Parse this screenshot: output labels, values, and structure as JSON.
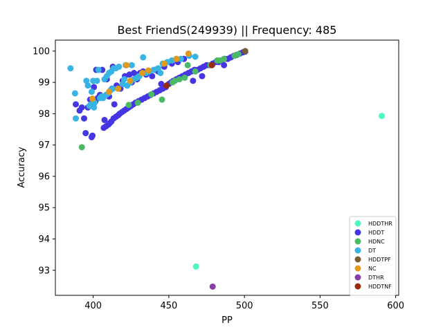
{
  "chart_data": {
    "type": "scatter",
    "title": "Best FriendS(249939) || Frequency: 485",
    "xlabel": "PP",
    "ylabel": "Accuracy",
    "xlim": [
      375,
      602
    ],
    "ylim": [
      92.2,
      100.35
    ],
    "xticks": [
      400,
      450,
      500,
      550,
      600
    ],
    "yticks": [
      93,
      94,
      95,
      96,
      97,
      98,
      99,
      100
    ],
    "grid": false,
    "legend_position": "lower-right",
    "series": [
      {
        "name": "HDDTHR",
        "color": "#4ef7c0",
        "points": [
          [
            590.8,
            97.93
          ],
          [
            468.0,
            93.12
          ]
        ]
      },
      {
        "name": "HDDT",
        "color": "#4535e3",
        "points": [
          [
            388.5,
            98.3
          ],
          [
            391.0,
            98.1
          ],
          [
            392.5,
            98.2
          ],
          [
            394.0,
            97.85
          ],
          [
            395.0,
            97.38
          ],
          [
            396.5,
            98.2
          ],
          [
            398.0,
            98.45
          ],
          [
            399.0,
            97.25
          ],
          [
            399.5,
            97.3
          ],
          [
            400.5,
            98.85
          ],
          [
            401.5,
            98.4
          ],
          [
            402.0,
            99.4
          ],
          [
            403.0,
            98.5
          ],
          [
            404.5,
            98.6
          ],
          [
            406.0,
            99.4
          ],
          [
            407.0,
            97.55
          ],
          [
            407.5,
            97.8
          ],
          [
            408.5,
            97.6
          ],
          [
            409.0,
            99.1
          ],
          [
            410.0,
            97.65
          ],
          [
            410.5,
            98.55
          ],
          [
            411.0,
            97.7
          ],
          [
            412.0,
            97.75
          ],
          [
            412.5,
            98.8
          ],
          [
            413.0,
            99.5
          ],
          [
            413.5,
            97.85
          ],
          [
            414.0,
            98.3
          ],
          [
            415.0,
            97.9
          ],
          [
            415.5,
            98.9
          ],
          [
            416.5,
            97.95
          ],
          [
            417.5,
            98.0
          ],
          [
            418.0,
            98.8
          ],
          [
            419.0,
            98.05
          ],
          [
            419.5,
            99.05
          ],
          [
            420.5,
            98.1
          ],
          [
            421.0,
            99.2
          ],
          [
            422.0,
            98.15
          ],
          [
            422.5,
            98.9
          ],
          [
            423.5,
            98.2
          ],
          [
            424.0,
            99.25
          ],
          [
            425.0,
            98.25
          ],
          [
            425.5,
            99.0
          ],
          [
            426.5,
            98.3
          ],
          [
            427.0,
            99.3
          ],
          [
            428.0,
            98.35
          ],
          [
            429.0,
            99.1
          ],
          [
            430.0,
            98.4
          ],
          [
            431.0,
            99.3
          ],
          [
            432.0,
            98.45
          ],
          [
            433.0,
            99.35
          ],
          [
            434.0,
            98.5
          ],
          [
            435.0,
            99.25
          ],
          [
            436.0,
            98.55
          ],
          [
            437.0,
            99.35
          ],
          [
            438.0,
            98.6
          ],
          [
            439.0,
            99.2
          ],
          [
            440.0,
            98.65
          ],
          [
            441.0,
            99.4
          ],
          [
            442.0,
            98.7
          ],
          [
            443.0,
            99.35
          ],
          [
            444.0,
            98.75
          ],
          [
            445.0,
            98.95
          ],
          [
            446.0,
            98.8
          ],
          [
            447.0,
            99.5
          ],
          [
            448.0,
            98.85
          ],
          [
            450.0,
            98.95
          ],
          [
            451.5,
            99.0
          ],
          [
            452.0,
            99.6
          ],
          [
            453.0,
            99.05
          ],
          [
            455.0,
            99.1
          ],
          [
            456.0,
            99.65
          ],
          [
            457.0,
            99.15
          ],
          [
            459.0,
            99.2
          ],
          [
            460.0,
            99.75
          ],
          [
            461.0,
            99.25
          ],
          [
            463.0,
            99.3
          ],
          [
            465.0,
            99.35
          ],
          [
            466.0,
            99.05
          ],
          [
            467.0,
            99.4
          ],
          [
            469.0,
            99.4
          ],
          [
            471.0,
            99.45
          ],
          [
            472.0,
            99.2
          ],
          [
            473.0,
            99.5
          ],
          [
            475.0,
            99.55
          ],
          [
            477.0,
            99.55
          ],
          [
            479.0,
            99.6
          ],
          [
            481.0,
            99.65
          ],
          [
            483.0,
            99.65
          ],
          [
            485.0,
            99.7
          ],
          [
            486.5,
            99.55
          ],
          [
            487.0,
            99.75
          ],
          [
            489.0,
            99.75
          ],
          [
            491.0,
            99.8
          ],
          [
            493.0,
            99.85
          ],
          [
            495.0,
            99.88
          ],
          [
            497.0,
            99.92
          ],
          [
            499.0,
            99.96
          ],
          [
            500.5,
            99.98
          ]
        ]
      },
      {
        "name": "HDNC",
        "color": "#4cb966",
        "points": [
          [
            392.5,
            96.93
          ],
          [
            423.5,
            98.28
          ],
          [
            429.5,
            98.35
          ],
          [
            438.5,
            98.62
          ],
          [
            445.5,
            98.45
          ],
          [
            452.5,
            99.0
          ],
          [
            454.0,
            99.05
          ],
          [
            457.0,
            99.1
          ],
          [
            460.5,
            99.15
          ],
          [
            462.5,
            99.55
          ],
          [
            467.5,
            99.35
          ],
          [
            477.5,
            99.55
          ],
          [
            482.0,
            99.7
          ],
          [
            484.0,
            99.7
          ],
          [
            486.5,
            99.75
          ],
          [
            493.5,
            99.85
          ],
          [
            496.0,
            99.9
          ]
        ]
      },
      {
        "name": "DT",
        "color": "#38b4e4",
        "points": [
          [
            385.0,
            99.45
          ],
          [
            388.0,
            98.65
          ],
          [
            388.5,
            97.85
          ],
          [
            395.5,
            99.05
          ],
          [
            396.5,
            98.9
          ],
          [
            397.5,
            98.25
          ],
          [
            398.5,
            98.3
          ],
          [
            399.0,
            98.7
          ],
          [
            400.0,
            99.05
          ],
          [
            400.5,
            98.2
          ],
          [
            401.0,
            98.35
          ],
          [
            402.5,
            99.05
          ],
          [
            403.5,
            99.4
          ],
          [
            404.5,
            98.5
          ],
          [
            405.5,
            98.55
          ],
          [
            406.5,
            98.5
          ],
          [
            407.5,
            99.1
          ],
          [
            408.5,
            98.6
          ],
          [
            409.0,
            99.2
          ],
          [
            410.0,
            98.65
          ],
          [
            410.5,
            99.3
          ],
          [
            411.5,
            98.75
          ],
          [
            412.0,
            99.35
          ],
          [
            413.0,
            98.8
          ],
          [
            413.5,
            99.45
          ],
          [
            415.0,
            99.45
          ],
          [
            417.0,
            99.5
          ],
          [
            419.5,
            98.95
          ],
          [
            420.5,
            99.1
          ],
          [
            421.5,
            99.55
          ],
          [
            422.5,
            98.9
          ],
          [
            424.5,
            99.0
          ],
          [
            425.5,
            99.55
          ],
          [
            427.0,
            99.1
          ],
          [
            429.0,
            99.15
          ],
          [
            430.5,
            99.2
          ],
          [
            433.0,
            99.8
          ],
          [
            435.0,
            99.3
          ],
          [
            437.0,
            99.35
          ],
          [
            440.0,
            99.4
          ],
          [
            443.0,
            99.45
          ],
          [
            444.5,
            99.3
          ],
          [
            446.0,
            99.6
          ],
          [
            449.0,
            99.65
          ],
          [
            452.0,
            99.7
          ],
          [
            455.0,
            99.75
          ],
          [
            458.0,
            99.75
          ],
          [
            463.5,
            99.85
          ],
          [
            467.5,
            99.82
          ]
        ]
      },
      {
        "name": "HDDTPF",
        "color": "#7a5c35",
        "points": [
          [
            500.5,
            100.0
          ]
        ]
      },
      {
        "name": "NC",
        "color": "#e09a1c",
        "points": [
          [
            399.5,
            98.48
          ],
          [
            410.5,
            98.7
          ],
          [
            416.5,
            98.8
          ],
          [
            422.0,
            99.55
          ],
          [
            424.5,
            99.05
          ],
          [
            432.5,
            99.3
          ],
          [
            436.5,
            99.38
          ],
          [
            447.0,
            99.6
          ],
          [
            455.0,
            99.75
          ],
          [
            463.0,
            99.92
          ]
        ]
      },
      {
        "name": "DTHR",
        "color": "#8640a8",
        "points": [
          [
            479.0,
            92.48
          ]
        ]
      },
      {
        "name": "HDDTNF",
        "color": "#992b0e",
        "points": [
          [
            448.5,
            98.9
          ],
          [
            478.5,
            99.55
          ]
        ]
      }
    ]
  }
}
